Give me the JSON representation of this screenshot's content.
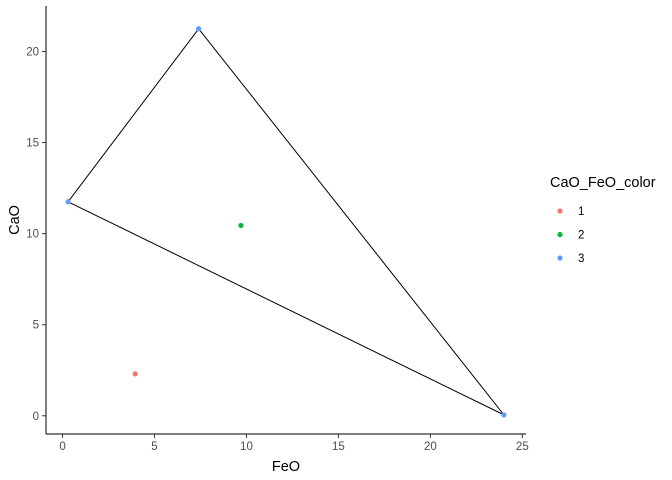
{
  "chart_data": {
    "type": "scatter",
    "xlabel": "FeO",
    "ylabel": "CaO",
    "xlim": [
      -0.9,
      25.2
    ],
    "ylim": [
      -1.0,
      22.5
    ],
    "xticks": [
      0,
      5,
      10,
      15,
      20,
      25
    ],
    "yticks": [
      0,
      5,
      10,
      15,
      20
    ],
    "grid": false,
    "legend": {
      "title": "CaO_FeO_color",
      "placement": "right",
      "entries": [
        {
          "label": "1",
          "color": "#F8766D"
        },
        {
          "label": "2",
          "color": "#00BA38"
        },
        {
          "label": "3",
          "color": "#619CFF"
        }
      ]
    },
    "points": [
      {
        "x": 3.95,
        "y": 2.3,
        "group": "1"
      },
      {
        "x": 9.7,
        "y": 10.45,
        "group": "2"
      },
      {
        "x": 0.3,
        "y": 11.75,
        "group": "3"
      },
      {
        "x": 7.4,
        "y": 21.25,
        "group": "3"
      },
      {
        "x": 24.0,
        "y": 0.05,
        "group": "3"
      }
    ],
    "polygon": {
      "color": "#000000",
      "vertices": [
        [
          0.3,
          11.75
        ],
        [
          7.4,
          21.25
        ],
        [
          24.0,
          0.05
        ]
      ]
    }
  }
}
